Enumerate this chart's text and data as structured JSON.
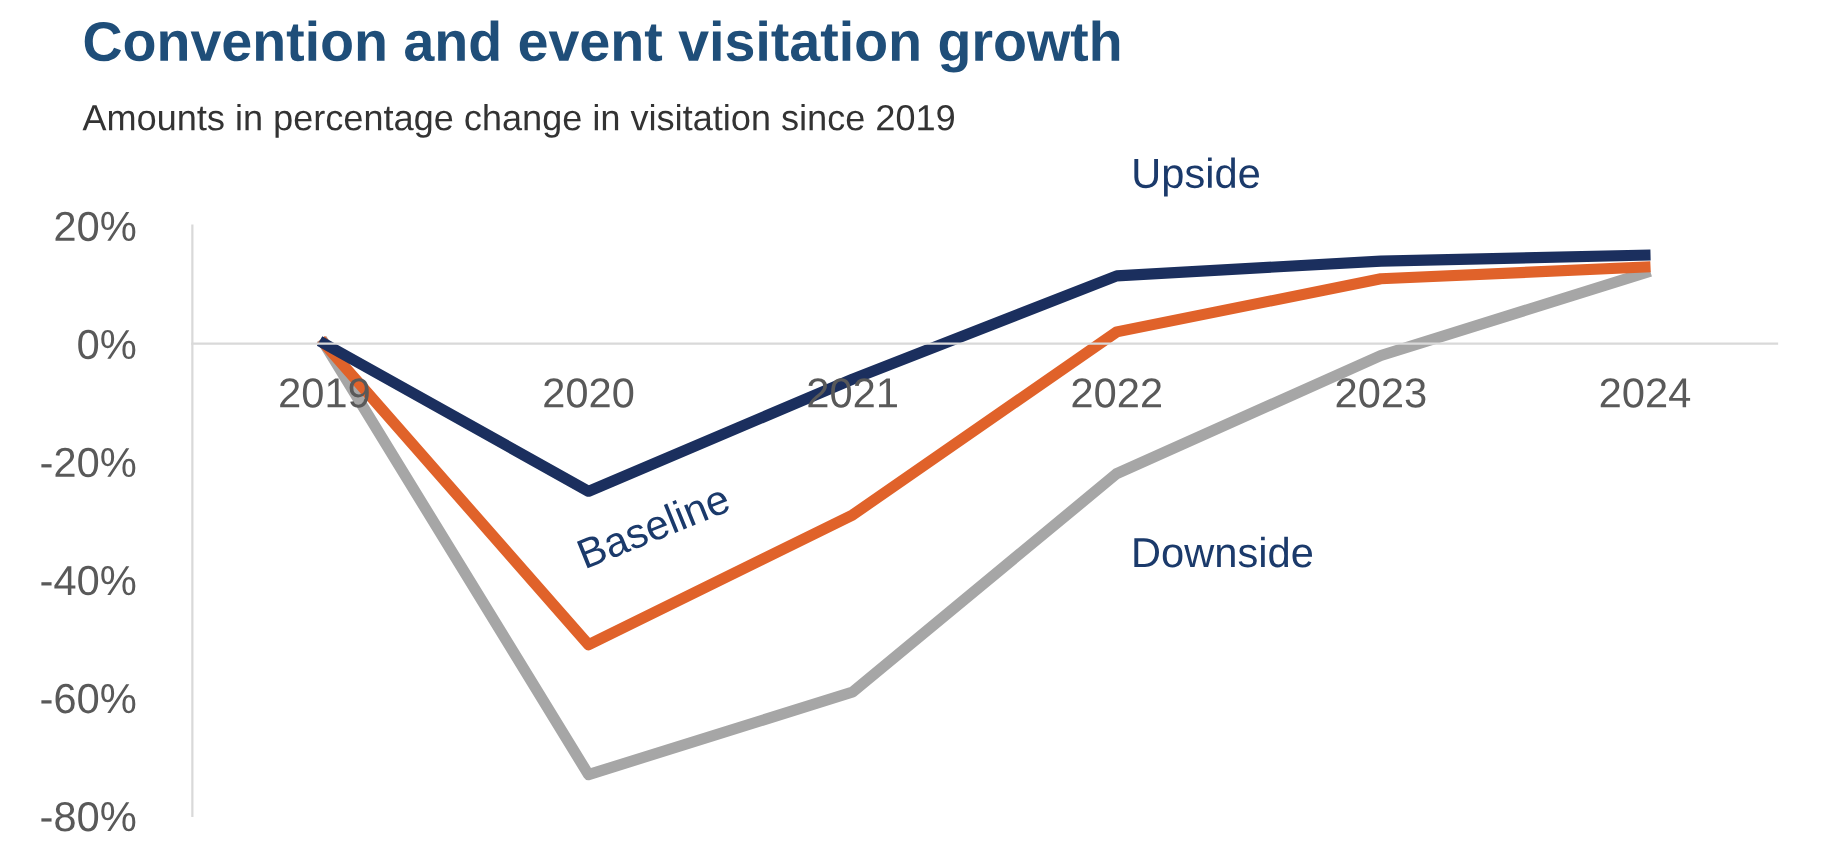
{
  "chart_data": {
    "type": "line",
    "title": "Convention and event visitation growth",
    "subtitle": "Amounts in percentage change in visitation since 2019",
    "categories": [
      "2019",
      "2020",
      "2021",
      "2022",
      "2023",
      "2024"
    ],
    "series": [
      {
        "name": "Downside",
        "color": "#a6a6a6",
        "values": [
          0,
          -73,
          -59,
          -22,
          -2,
          12
        ]
      },
      {
        "name": "Baseline",
        "color": "#e0622a",
        "values": [
          0,
          -51,
          -29,
          2,
          11,
          13
        ]
      },
      {
        "name": "Upside",
        "color": "#1b2f5e",
        "values": [
          0,
          -25,
          -6,
          11.5,
          14,
          15
        ]
      }
    ],
    "ylim": [
      -80,
      20
    ],
    "yticks": [
      {
        "value": -80,
        "label": "-80%"
      },
      {
        "value": -60,
        "label": "-60%"
      },
      {
        "value": -40,
        "label": "-40%"
      },
      {
        "value": -20,
        "label": "-20%"
      },
      {
        "value": 0,
        "label": "0%"
      },
      {
        "value": 20,
        "label": "20%"
      }
    ],
    "grid": false,
    "legend": false,
    "marker": "none",
    "line_style": "solid"
  }
}
